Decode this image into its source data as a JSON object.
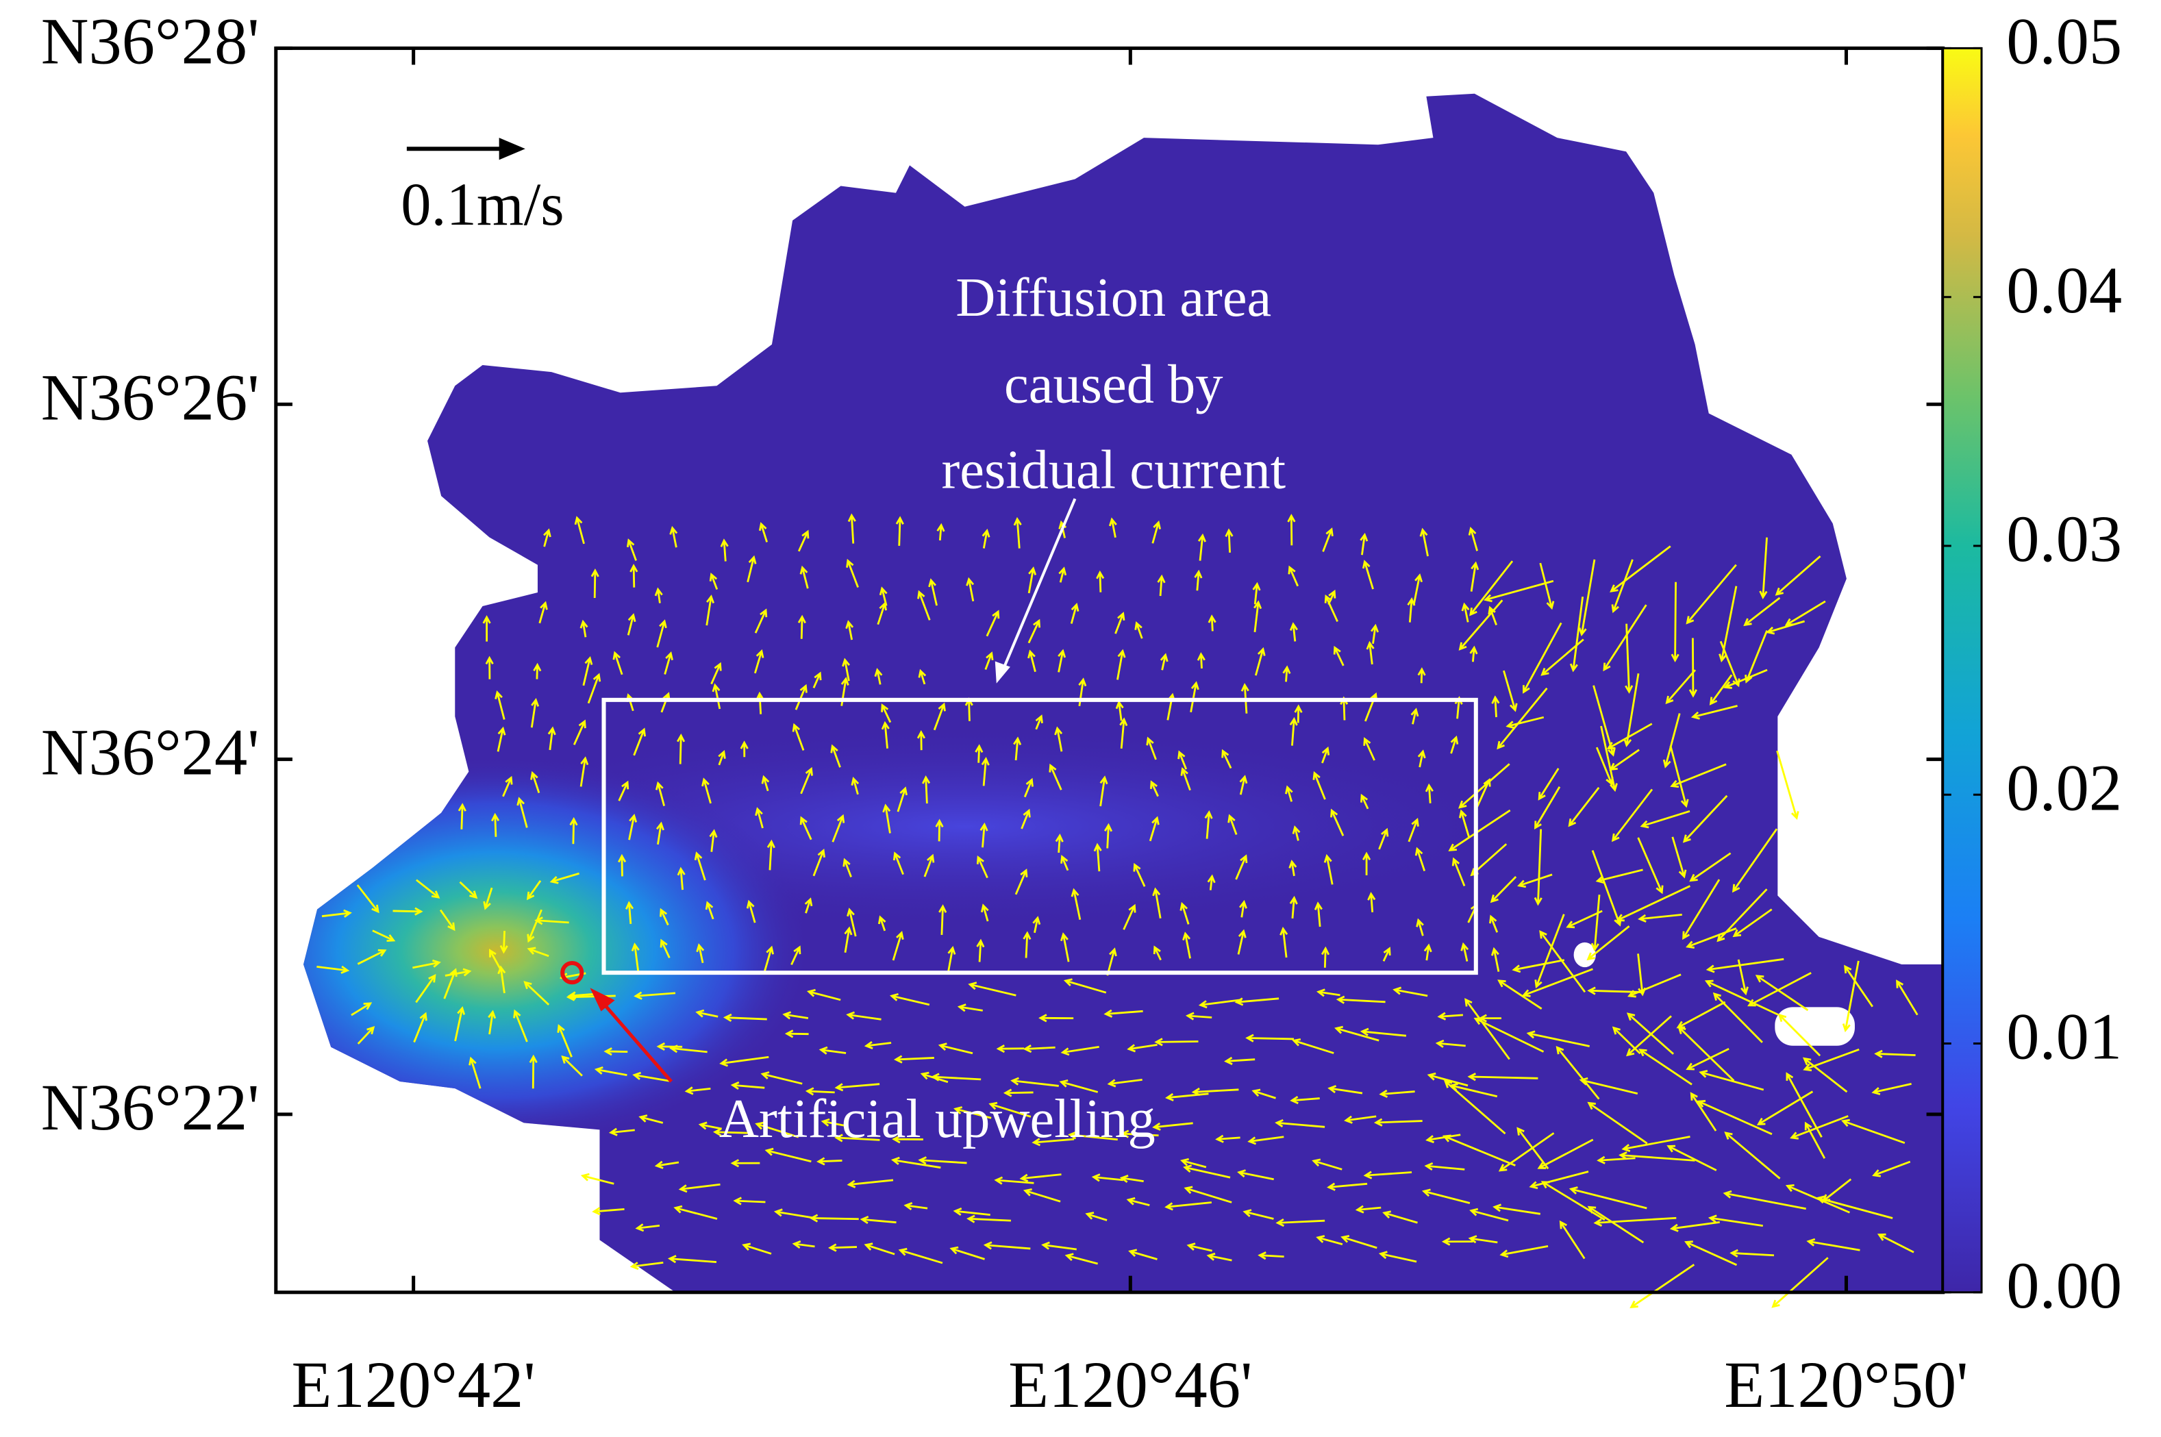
{
  "map": {
    "xlim": [
      120.6872,
      120.8423
    ],
    "ylim": [
      36.35,
      36.4667
    ],
    "xticks": [
      {
        "value": 120.7,
        "label": "E120°42'"
      },
      {
        "value": 120.7667,
        "label": "E120°46'"
      },
      {
        "value": 120.8333,
        "label": "E120°50'"
      }
    ],
    "yticks": [
      {
        "value": 36.3667,
        "label": "N36°22'"
      },
      {
        "value": 36.4,
        "label": "N36°24'"
      },
      {
        "value": 36.4333,
        "label": "N36°26'"
      },
      {
        "value": 36.4667,
        "label": "N36°28'"
      }
    ]
  },
  "colorbar": {
    "lim": [
      0,
      0.05
    ],
    "ticks": [
      {
        "value": 0,
        "label": "0.00"
      },
      0.01,
      0.02,
      0.03,
      0.04,
      0.05
    ]
  },
  "annotations": {
    "scale": "0.1m/s",
    "diffusion": [
      "Diffusion area",
      "caused by",
      "residual current"
    ],
    "upwelling": "Artificial upwelling"
  }
}
